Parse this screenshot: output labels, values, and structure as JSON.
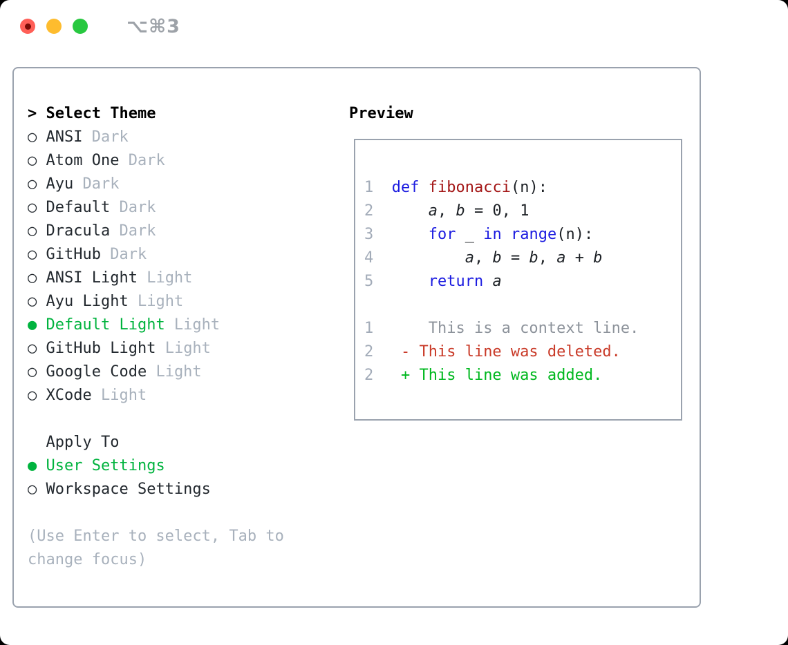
{
  "titlebar": {
    "shortcut": "⌥⌘3",
    "buttons": [
      {
        "name": "close-button"
      },
      {
        "name": "minimize-button"
      },
      {
        "name": "zoom-button"
      }
    ]
  },
  "theme_menu": {
    "cursor": ">",
    "title": "Select Theme",
    "items": [
      {
        "label": "ANSI",
        "tag": "Dark",
        "selected": false
      },
      {
        "label": "Atom One",
        "tag": "Dark",
        "selected": false
      },
      {
        "label": "Ayu",
        "tag": "Dark",
        "selected": false
      },
      {
        "label": "Default",
        "tag": "Dark",
        "selected": false
      },
      {
        "label": "Dracula",
        "tag": "Dark",
        "selected": false
      },
      {
        "label": "GitHub",
        "tag": "Dark",
        "selected": false
      },
      {
        "label": "ANSI Light",
        "tag": "Light",
        "selected": false
      },
      {
        "label": "Ayu Light",
        "tag": "Light",
        "selected": false
      },
      {
        "label": "Default Light",
        "tag": "Light",
        "selected": true
      },
      {
        "label": "GitHub Light",
        "tag": "Light",
        "selected": false
      },
      {
        "label": "Google Code",
        "tag": "Light",
        "selected": false
      },
      {
        "label": "XCode",
        "tag": "Light",
        "selected": false
      }
    ]
  },
  "apply_to": {
    "title": "Apply To",
    "options": [
      {
        "label": "User Settings",
        "selected": true
      },
      {
        "label": "Workspace Settings",
        "selected": false
      }
    ]
  },
  "help": {
    "lines": [
      "(Use Enter to select, Tab to",
      "change focus)"
    ]
  },
  "preview": {
    "title": "Preview",
    "lines": [
      {
        "num": "1",
        "segs": [
          [
            "p",
            "  "
          ],
          [
            "kw",
            "def"
          ],
          [
            "p",
            " "
          ],
          [
            "fn",
            "fibonacci"
          ],
          [
            "p",
            "(n):"
          ]
        ]
      },
      {
        "num": "2",
        "segs": [
          [
            "p",
            "      "
          ],
          [
            "v",
            "a"
          ],
          [
            "p",
            ", "
          ],
          [
            "v",
            "b"
          ],
          [
            "p",
            " = 0, 1"
          ]
        ]
      },
      {
        "num": "3",
        "segs": [
          [
            "p",
            "      "
          ],
          [
            "kw",
            "for"
          ],
          [
            "p",
            " _ "
          ],
          [
            "kw",
            "in"
          ],
          [
            "p",
            " "
          ],
          [
            "kw",
            "range"
          ],
          [
            "p",
            "(n):"
          ]
        ]
      },
      {
        "num": "4",
        "segs": [
          [
            "p",
            "          "
          ],
          [
            "v",
            "a"
          ],
          [
            "p",
            ", "
          ],
          [
            "v",
            "b"
          ],
          [
            "p",
            " = "
          ],
          [
            "v",
            "b"
          ],
          [
            "p",
            ", "
          ],
          [
            "v",
            "a"
          ],
          [
            "p",
            " + "
          ],
          [
            "v",
            "b"
          ]
        ]
      },
      {
        "num": "5",
        "segs": [
          [
            "p",
            "      "
          ],
          [
            "kw",
            "return"
          ],
          [
            "p",
            " "
          ],
          [
            "v",
            "a"
          ]
        ]
      },
      {
        "num": "",
        "segs": []
      },
      {
        "num": "1",
        "segs": [
          [
            "ctx",
            "      This is a context line."
          ]
        ]
      },
      {
        "num": "2",
        "segs": [
          [
            "del",
            "   - This line was deleted."
          ]
        ]
      },
      {
        "num": "2",
        "segs": [
          [
            "add",
            "   + This line was added."
          ]
        ]
      }
    ]
  },
  "colors": {
    "plain": "#1d2126",
    "keyword": "#1b1be0",
    "function": "#a31515",
    "context": "#8d939b",
    "deleted": "#c93a28",
    "added": "#00b81f",
    "dim": "#a8b1bc",
    "main": "#22282e",
    "heading": "#000000",
    "border": "#9aa2ae",
    "green": "#00b33e",
    "lnum": "#a2abb8",
    "shortcut": "#9da2a8",
    "red": "#ff5f57",
    "reddot": "#7a0c06",
    "yellow": "#febc2e",
    "tgreen": "#28c840"
  }
}
